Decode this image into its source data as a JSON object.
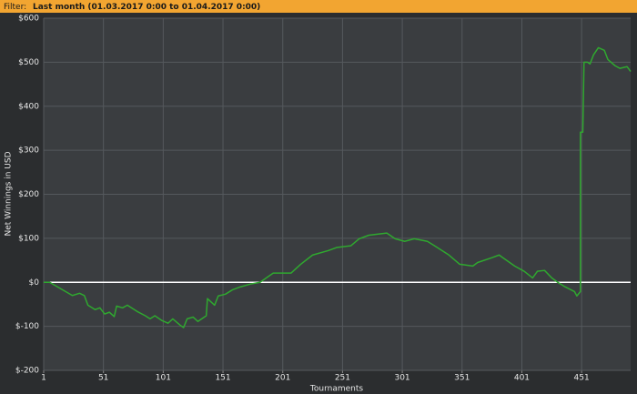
{
  "filter": {
    "label": "Filter:",
    "value": "Last month (01.03.2017 0:00 to 01.04.2017 0:00)"
  },
  "chart_data": {
    "type": "line",
    "x_label": "Tournaments",
    "y_label": "Net Winnings in USD",
    "x": [
      1,
      6,
      25,
      31,
      35,
      38,
      44,
      48,
      52,
      56,
      60,
      62,
      67,
      71,
      79,
      86,
      90,
      94,
      100,
      105,
      109,
      115,
      118,
      121,
      126,
      130,
      137,
      138,
      144,
      147,
      153,
      159,
      166,
      174,
      182,
      193,
      208,
      216,
      226,
      239,
      246,
      258,
      265,
      273,
      288,
      295,
      303,
      311,
      322,
      328,
      340,
      349,
      360,
      364,
      376,
      382,
      385,
      395,
      403,
      410,
      414,
      420,
      426,
      431,
      437,
      445,
      447,
      450,
      450,
      452,
      453,
      456,
      458,
      461,
      465,
      470,
      473,
      479,
      483,
      489,
      492
    ],
    "values": [
      0,
      0,
      -30,
      -25,
      -30,
      -52,
      -62,
      -58,
      -72,
      -68,
      -78,
      -54,
      -58,
      -52,
      -66,
      -76,
      -83,
      -76,
      -87,
      -93,
      -83,
      -97,
      -103,
      -83,
      -79,
      -89,
      -76,
      -37,
      -52,
      -31,
      -27,
      -17,
      -10,
      -4,
      0,
      21,
      21,
      41,
      62,
      72,
      79,
      83,
      99,
      107,
      112,
      99,
      93,
      99,
      93,
      83,
      62,
      41,
      37,
      45,
      56,
      62,
      56,
      37,
      25,
      10,
      25,
      27,
      10,
      0,
      -10,
      -21,
      -31,
      -21,
      341,
      341,
      500,
      500,
      496,
      517,
      533,
      527,
      506,
      492,
      486,
      490,
      479
    ],
    "color": "#2fa82f",
    "xlim": [
      1,
      492
    ],
    "xticks": [
      1,
      51,
      101,
      151,
      201,
      251,
      301,
      351,
      401,
      451
    ],
    "ylim": [
      -200,
      600
    ],
    "yticks": [
      {
        "value": -200,
        "label": "$-200"
      },
      {
        "value": -100,
        "label": "$-100"
      },
      {
        "value": 0,
        "label": "$0"
      },
      {
        "value": 100,
        "label": "$100"
      },
      {
        "value": 200,
        "label": "$200"
      },
      {
        "value": 300,
        "label": "$300"
      },
      {
        "value": 400,
        "label": "$400"
      },
      {
        "value": 500,
        "label": "$500"
      },
      {
        "value": 600,
        "label": "$600"
      }
    ],
    "grid": true,
    "grid_color": "#55595d",
    "zero_line_color": "#ffffff"
  }
}
